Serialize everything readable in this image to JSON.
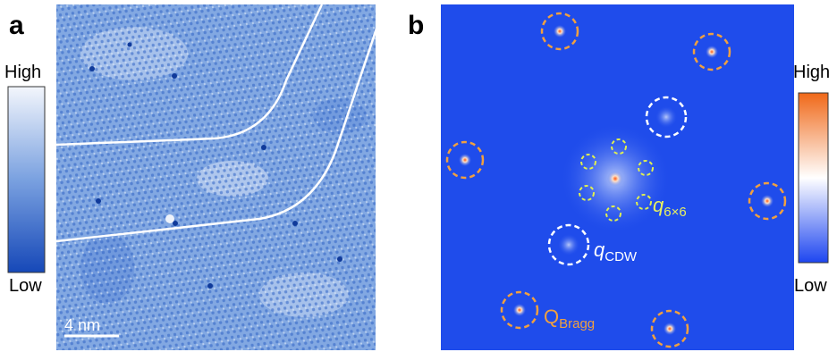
{
  "panels": [
    {
      "label": "a",
      "colorbar": {
        "high": "High",
        "low": "Low"
      },
      "scale_bar": "4 nm"
    },
    {
      "label": "b",
      "colorbar": {
        "high": "High",
        "low": "Low"
      },
      "annotations": [
        {
          "base": "q",
          "sub": "6×6"
        },
        {
          "base": "q",
          "sub": "CDW"
        },
        {
          "base": "Q",
          "sub": "Bragg"
        }
      ]
    }
  ]
}
